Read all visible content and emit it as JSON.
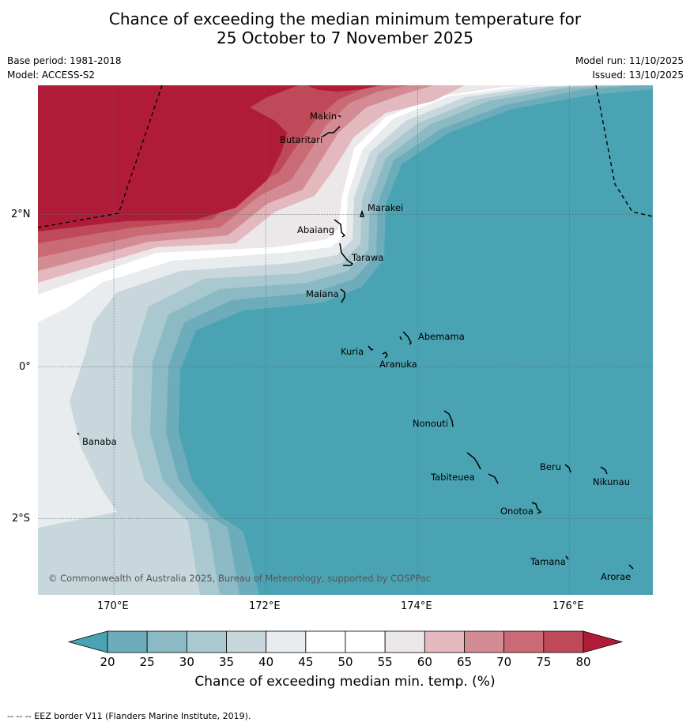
{
  "title": {
    "line1": "Chance of exceeding the median minimum temperature for",
    "line2": "25 October to 7 November 2025"
  },
  "meta": {
    "base_period": "Base period: 1981-2018",
    "model": "Model: ACCESS-S2",
    "model_run": "Model run: 11/10/2025",
    "issued": "Issued: 13/10/2025"
  },
  "map": {
    "lon_range": [
      169,
      177.1
    ],
    "lat_range": [
      -3.0,
      3.7
    ],
    "lon_ticks": [
      "170°E",
      "172°E",
      "174°E",
      "176°E"
    ],
    "lat_ticks": [
      "2°N",
      "0°",
      "2°S"
    ],
    "places": [
      {
        "name": "Makin"
      },
      {
        "name": "Butaritari"
      },
      {
        "name": "Marakei"
      },
      {
        "name": "Abaiang"
      },
      {
        "name": "Tarawa"
      },
      {
        "name": "Maiana"
      },
      {
        "name": "Abemama"
      },
      {
        "name": "Kuria"
      },
      {
        "name": "Aranuka"
      },
      {
        "name": "Nonouti"
      },
      {
        "name": "Banaba"
      },
      {
        "name": "Beru"
      },
      {
        "name": "Nikunau"
      },
      {
        "name": "Tabiteuea"
      },
      {
        "name": "Onotoa"
      },
      {
        "name": "Tamana"
      },
      {
        "name": "Arorae"
      }
    ],
    "copyright": "© Commonwealth of Australia 2025, Bureau of Meteorology, supported by COSPPac"
  },
  "colorbar": {
    "levels": [
      "20",
      "25",
      "30",
      "35",
      "40",
      "45",
      "50",
      "55",
      "60",
      "65",
      "70",
      "75",
      "80"
    ],
    "colors": {
      "below20": "#4aa3b3",
      "c20": "#6dadbb",
      "c25": "#8bbac5",
      "c30": "#a9c8cf",
      "c35": "#c7d7dc",
      "c40": "#e8ecef",
      "c45": "#ffffff",
      "c50": "#ffffff",
      "c55": "#ece8ea",
      "c60": "#e3b8be",
      "c65": "#d38c94",
      "c70": "#c96a74",
      "c75": "#bf4958",
      "above80": "#b01c38"
    },
    "title": "Chance of exceeding median min. temp. (%)"
  },
  "footnote": "--  --  -- EEZ border V11 (Flanders Marine Institute, 2019)."
}
